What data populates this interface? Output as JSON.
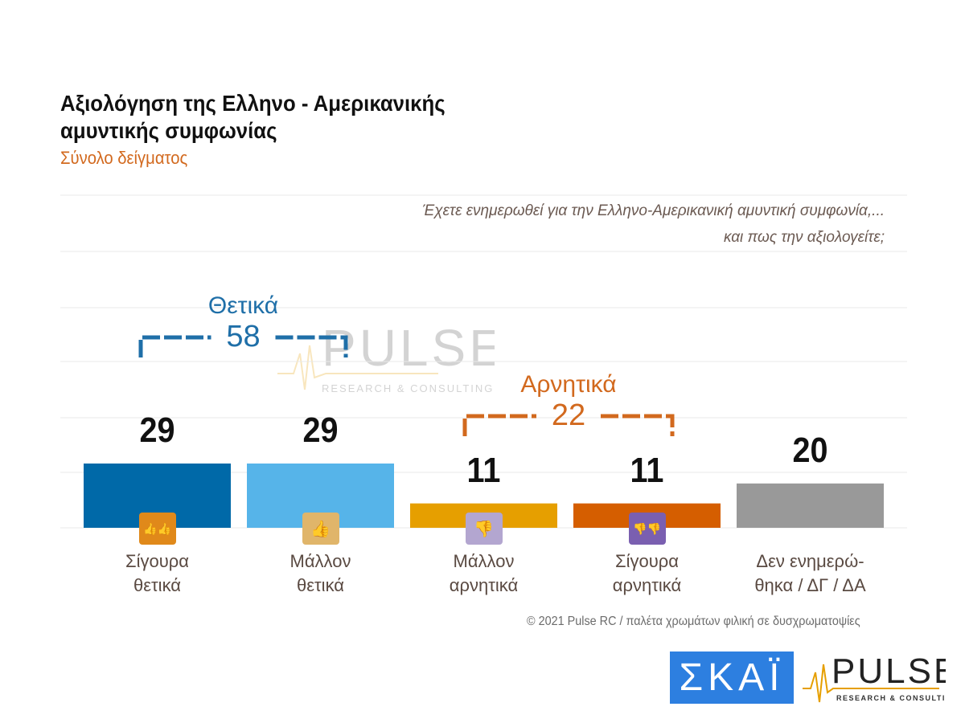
{
  "title_line1": "Αξιολόγηση της Ελληνο - Αμερικανικής",
  "title_line2": "αμυντικής συμφωνίας",
  "subtitle": "Σύνολο δείγματος",
  "question_line1": "Έχετε ενημερωθεί για την Ελληνο-Αμερικανική αμυντική συμφωνία,...",
  "question_line2": "και πως την αξιολογείτε;",
  "chart_data": {
    "type": "bar",
    "categories": [
      "Σίγουρα θετικά",
      "Μάλλον θετικά",
      "Μάλλον αρνητικά",
      "Σίγουρα αρνητικά",
      "Δεν ενημερώ-θηκα / ΔΓ / ΔΑ"
    ],
    "category_lines": [
      [
        "Σίγουρα",
        "θετικά"
      ],
      [
        "Μάλλον",
        "θετικά"
      ],
      [
        "Μάλλον",
        "αρνητικά"
      ],
      [
        "Σίγουρα",
        "αρνητικά"
      ],
      [
        "Δεν ενημερώ-",
        "θηκα / ΔΓ / ΔΑ"
      ]
    ],
    "values": [
      29,
      29,
      11,
      11,
      20
    ],
    "value_labels": [
      "29",
      "29",
      "11",
      "11",
      "20"
    ],
    "colors": [
      "#0069a8",
      "#56b4e9",
      "#e69f00",
      "#d55e00",
      "#999999"
    ],
    "icons": [
      "two-thumbs-up-icon",
      "thumb-up-icon",
      "thumb-down-icon",
      "two-thumbs-down-icon",
      null
    ],
    "icon_colors": [
      "#e0891a",
      "#e0b56a",
      "#b3a6d0",
      "#7a5fb0",
      null
    ],
    "groups": [
      {
        "label": "Θετικά",
        "total": "58",
        "color": "#1f6fa8"
      },
      {
        "label": "Αρνητικά",
        "total": "22",
        "color": "#d2691e"
      }
    ],
    "ylim": [
      0,
      60
    ],
    "grid": true,
    "legend": "none"
  },
  "footer": "© 2021 Pulse RC   /   παλέτα χρωμάτων φιλική σε δυσχρωματοψίες",
  "logos": {
    "skai": "ΣΚΑΪ",
    "pulse": "PULSE",
    "pulse_sub": "RESEARCH & CONSULTING"
  }
}
